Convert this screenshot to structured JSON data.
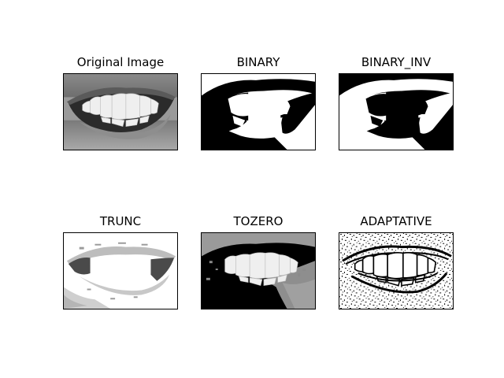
{
  "figure": {
    "panels": [
      {
        "id": "original",
        "title": "Original Image"
      },
      {
        "id": "binary",
        "title": "BINARY"
      },
      {
        "id": "binary_inv",
        "title": "BINARY_INV"
      },
      {
        "id": "trunc",
        "title": "TRUNC"
      },
      {
        "id": "tozero",
        "title": "TOZERO"
      },
      {
        "id": "adaptative",
        "title": "ADAPTATIVE"
      }
    ]
  }
}
